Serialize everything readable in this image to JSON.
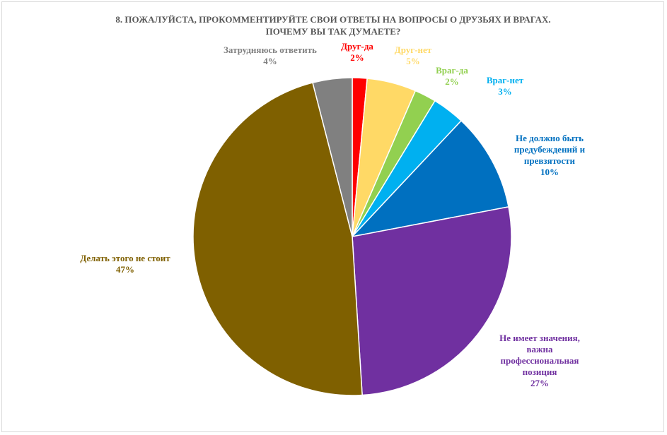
{
  "chart_data": {
    "type": "pie",
    "title": "8. ПОЖАЛУЙСТА, ПРОКОММЕНТИРУЙТЕ СВОИ ОТВЕТЫ НА ВОПРОСЫ О ДРУЗЬЯХ И ВРАГАХ. ПОЧЕМУ ВЫ ТАК ДУМАЕТЕ?",
    "title_lines": [
      "8. ПОЖАЛУЙСТА, ПРОКОММЕНТИРУЙТЕ СВОИ ОТВЕТЫ НА ВОПРОСЫ О ДРУЗЬЯХ И ВРАГАХ.",
      "ПОЧЕМУ ВЫ ТАК ДУМАЕТЕ?"
    ],
    "start_angle_deg": 0,
    "direction": "clockwise",
    "slices": [
      {
        "label": "Друг-да",
        "label_lines": [
          "Друг-да"
        ],
        "value": 1.5,
        "display": "2%",
        "color": "#ff0000"
      },
      {
        "label": "Друг-нет",
        "label_lines": [
          "Друг-нет"
        ],
        "value": 5,
        "display": "5%",
        "color": "#ffd966"
      },
      {
        "label": "Враг-да",
        "label_lines": [
          "Враг-да"
        ],
        "value": 2.2,
        "display": "2%",
        "color": "#92d050"
      },
      {
        "label": "Враг-нет",
        "label_lines": [
          "Враг-нет"
        ],
        "value": 3.3,
        "display": "3%",
        "color": "#00b0f0"
      },
      {
        "label": "Не должно быть предубеждений и превзятости",
        "label_lines": [
          "Не должно быть",
          "предубеждений и",
          "превзятости"
        ],
        "value": 10,
        "display": "10%",
        "color": "#0070c0"
      },
      {
        "label": "Не имеет значения, важна профессиональная позиция",
        "label_lines": [
          "Не имеет значения,",
          "важна",
          "профессиональная",
          "позиция"
        ],
        "value": 27,
        "display": "27%",
        "color": "#7030a0"
      },
      {
        "label": "Делать этого не стоит",
        "label_lines": [
          "Делать этого не стоит"
        ],
        "value": 47,
        "display": "47%",
        "color": "#7f6000"
      },
      {
        "label": "Затрудняюсь ответить",
        "label_lines": [
          "Затрудняюсь ответить"
        ],
        "value": 4,
        "display": "4%",
        "color": "#808080"
      }
    ]
  }
}
